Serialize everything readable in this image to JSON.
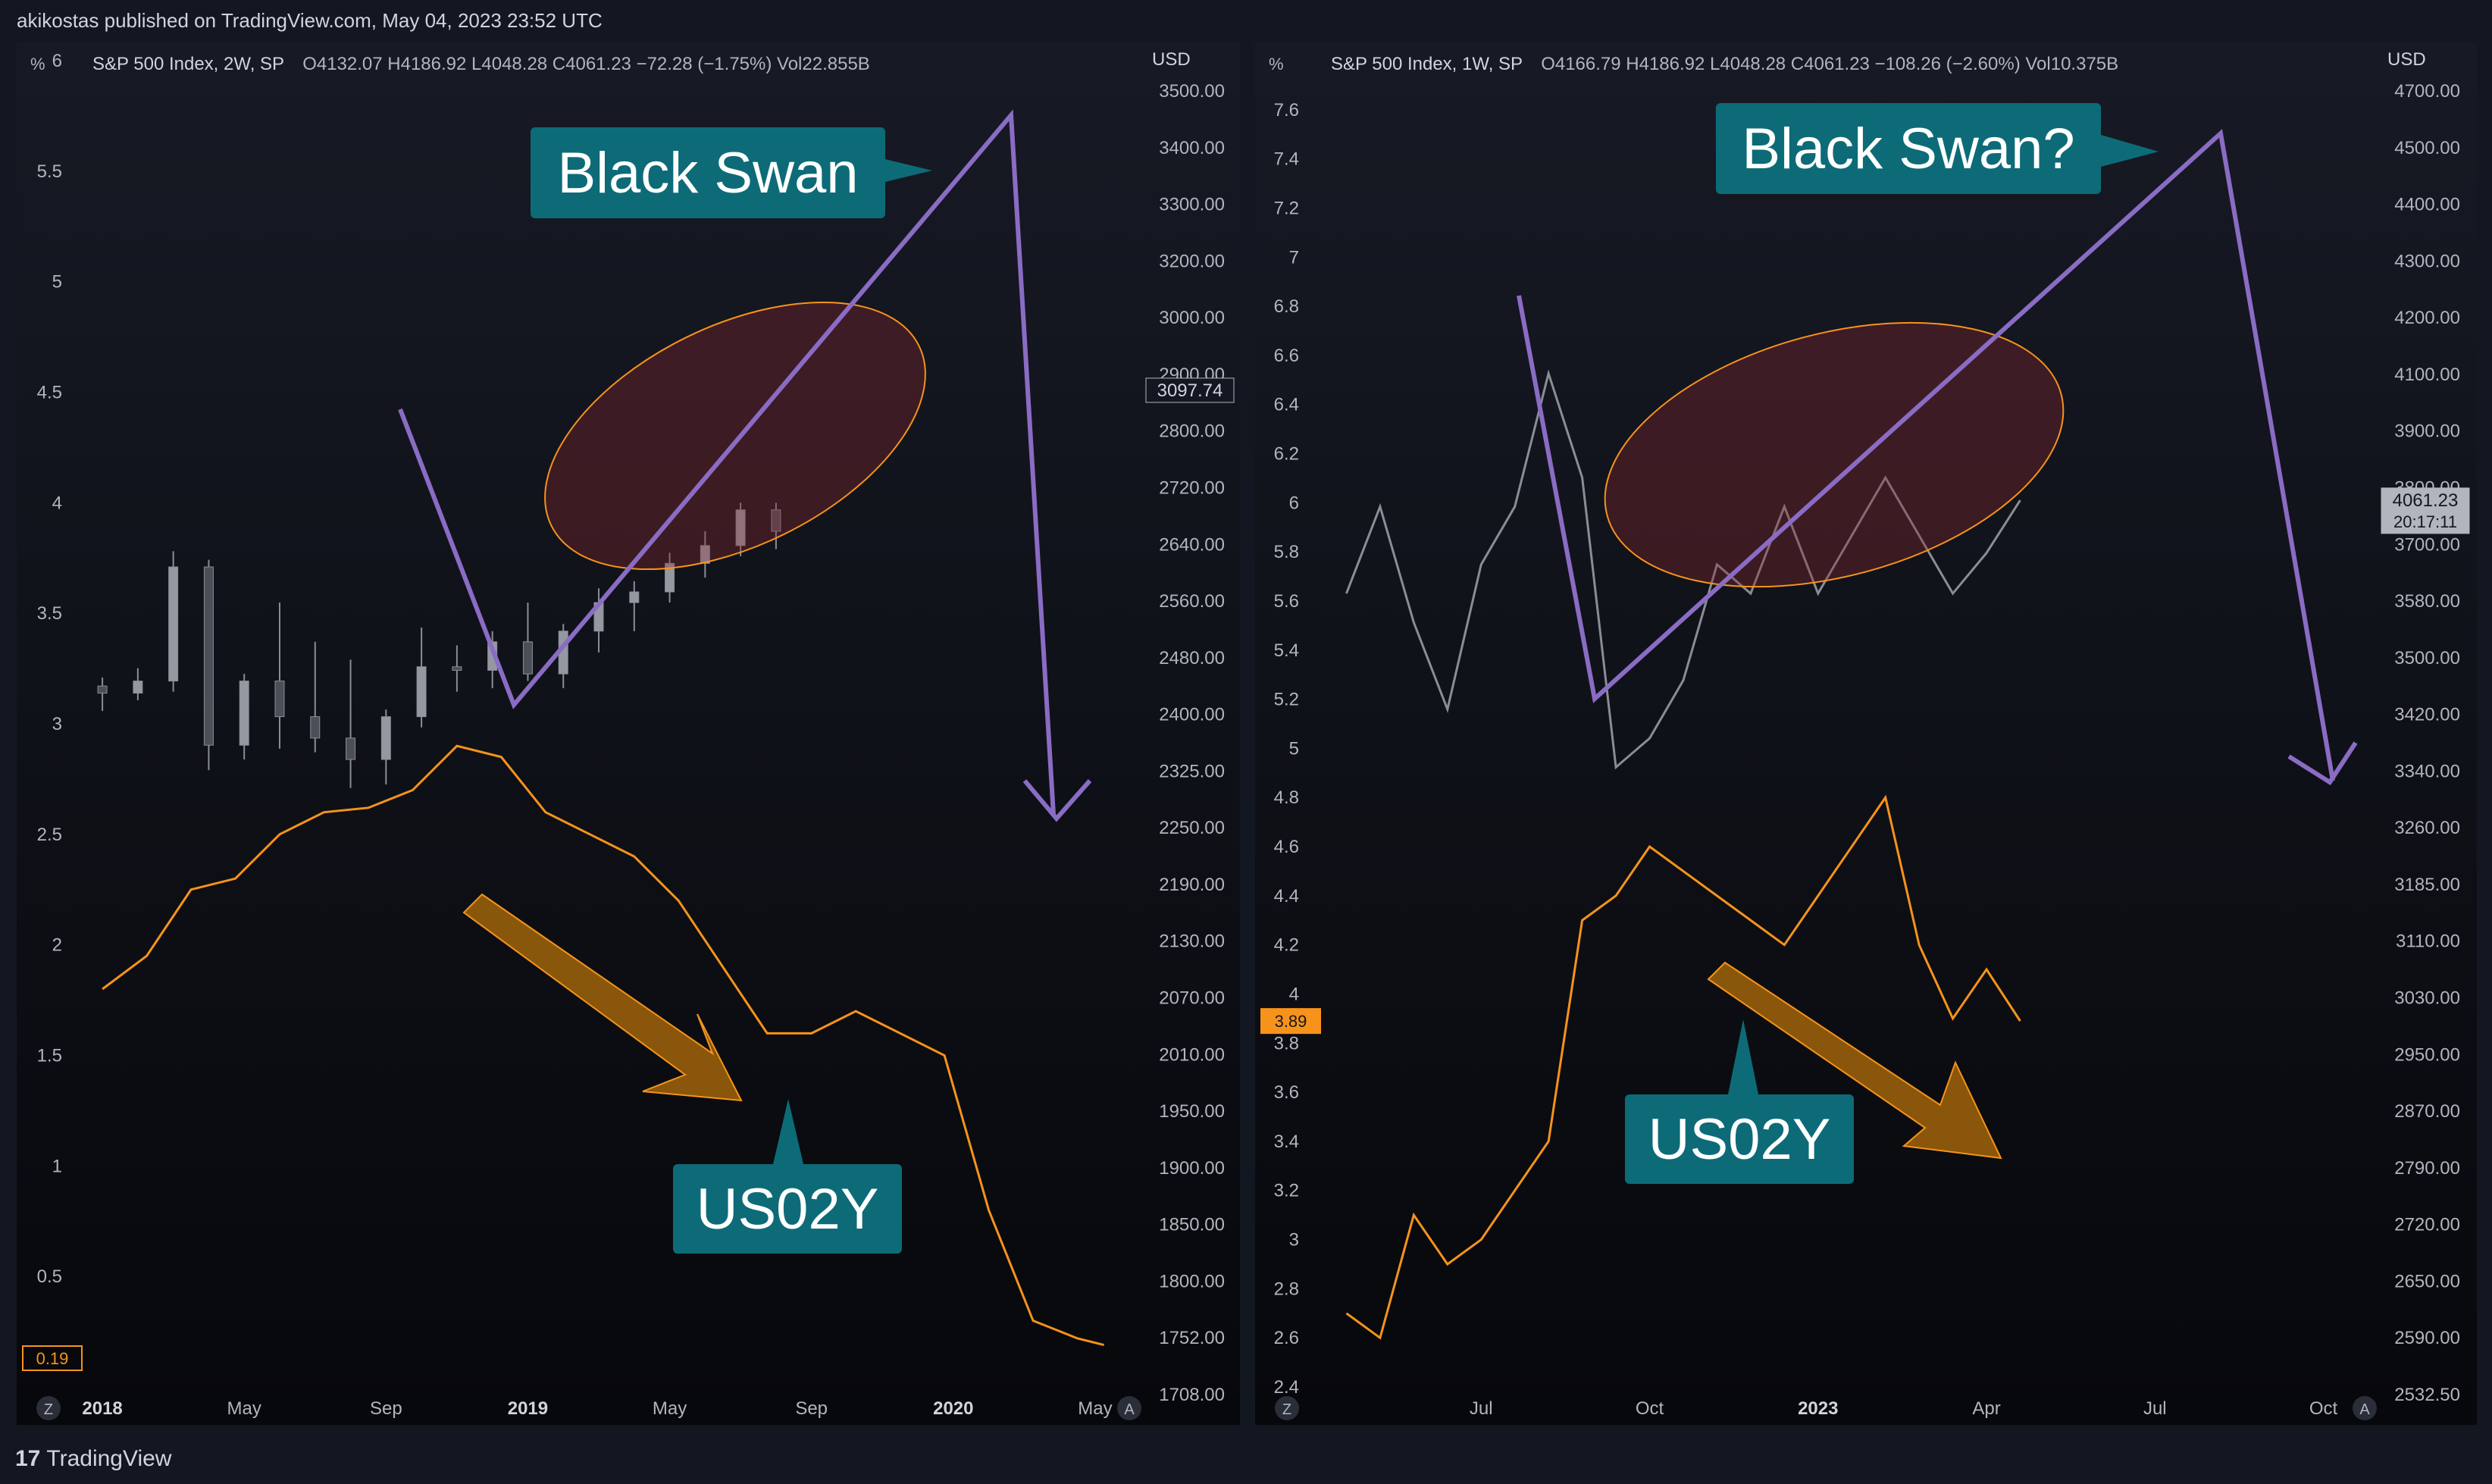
{
  "header": {
    "published": "akikostas published on TradingView.com, May 04, 2023 23:52 UTC"
  },
  "footer": {
    "brand": "TradingView",
    "logo_icon": "tradingview-logo-icon"
  },
  "colors": {
    "background": "#131722",
    "pane_bg": "#0c0d12",
    "candle": "#4c4f58",
    "yield": "#f7931a",
    "arrow_purple": "#8a6cc4",
    "callout": "#0d6b78",
    "ellipse": "#f7931a"
  },
  "chart_data": [
    {
      "type": "candlestick",
      "title": "S&P 500 Index, 2W, SP",
      "ohlc": {
        "o": "O4132.07",
        "h": "H4186.92",
        "l": "L4048.28",
        "c": "C4061.23",
        "chg": "−72.28 (−1.75%)",
        "vol": "Vol22.855B"
      },
      "left_axis_unit": "%",
      "right_axis_unit": "USD",
      "left_ticks": [
        "6",
        "5.5",
        "5",
        "4.5",
        "4",
        "3.5",
        "3",
        "2.5",
        "2",
        "1.5",
        "1",
        "0.5"
      ],
      "left_tick_values": [
        6,
        5.5,
        5,
        4.5,
        4,
        3.5,
        3,
        2.5,
        2,
        1.5,
        1,
        0.5
      ],
      "left_range": [
        0.0,
        6.0
      ],
      "right_ticks": [
        "3500.00",
        "3400.00",
        "3300.00",
        "3200.00",
        "3000.00",
        "2900.00",
        "2800.00",
        "2720.00",
        "2640.00",
        "2560.00",
        "2480.00",
        "2400.00",
        "2325.00",
        "2250.00",
        "2190.00",
        "2130.00",
        "2070.00",
        "2010.00",
        "1950.00",
        "1900.00",
        "1850.00",
        "1800.00",
        "1752.00",
        "1708.00"
      ],
      "right_range": [
        1700,
        3560
      ],
      "price_label": "3097.74",
      "price_value": 3097.74,
      "yield_label": "0.19",
      "x_labels": [
        {
          "t": "2018",
          "bold": true,
          "x": 0.0
        },
        {
          "t": "May",
          "bold": false,
          "x": 0.16
        },
        {
          "t": "Sep",
          "bold": false,
          "x": 0.32
        },
        {
          "t": "2019",
          "bold": true,
          "x": 0.48
        },
        {
          "t": "May",
          "bold": false,
          "x": 0.64
        },
        {
          "t": "Sep",
          "bold": false,
          "x": 0.8
        },
        {
          "t": "2020",
          "bold": true,
          "x": 0.96
        },
        {
          "t": "May",
          "bold": false,
          "x": 1.12
        }
      ],
      "time_range": [
        -0.03,
        1.15
      ],
      "series": [
        {
          "name": "S&P 500",
          "type": "candlestick",
          "candles": [
            [
              0.0,
              2683,
              2695,
              2648,
              2673
            ],
            [
              0.04,
              2673,
              2708,
              2663,
              2690
            ],
            [
              0.08,
              2690,
              2872,
              2675,
              2850
            ],
            [
              0.12,
              2850,
              2860,
              2565,
              2600
            ],
            [
              0.16,
              2600,
              2700,
              2580,
              2690
            ],
            [
              0.2,
              2690,
              2800,
              2595,
              2640
            ],
            [
              0.24,
              2640,
              2745,
              2590,
              2610
            ],
            [
              0.28,
              2610,
              2720,
              2540,
              2580
            ],
            [
              0.32,
              2580,
              2650,
              2545,
              2640
            ],
            [
              0.36,
              2640,
              2765,
              2625,
              2710
            ],
            [
              0.4,
              2710,
              2740,
              2675,
              2705
            ],
            [
              0.44,
              2705,
              2760,
              2680,
              2745
            ],
            [
              0.48,
              2745,
              2800,
              2690,
              2700
            ],
            [
              0.52,
              2700,
              2770,
              2680,
              2760
            ],
            [
              0.56,
              2760,
              2820,
              2730,
              2800
            ],
            [
              0.6,
              2800,
              2830,
              2760,
              2815
            ],
            [
              0.64,
              2815,
              2870,
              2800,
              2855
            ],
            [
              0.68,
              2855,
              2900,
              2835,
              2880
            ],
            [
              0.72,
              2880,
              2940,
              2865,
              2930
            ],
            [
              0.76,
              2930,
              2940,
              2875,
              2900
            ]
          ]
        },
        {
          "name": "US02Y",
          "type": "line",
          "x": [
            0.0,
            0.05,
            0.1,
            0.15,
            0.2,
            0.25,
            0.3,
            0.35,
            0.4,
            0.45,
            0.5,
            0.55,
            0.6,
            0.65,
            0.7,
            0.75,
            0.8,
            0.85,
            0.9,
            0.95,
            1.0,
            1.05,
            1.1,
            1.13
          ],
          "values": [
            1.8,
            1.95,
            2.25,
            2.3,
            2.5,
            2.6,
            2.62,
            2.7,
            2.9,
            2.85,
            2.6,
            2.5,
            2.4,
            2.2,
            1.9,
            1.6,
            1.6,
            1.7,
            1.6,
            1.5,
            0.8,
            0.3,
            0.22,
            0.19
          ]
        }
      ],
      "annotations": [
        {
          "type": "callout",
          "text": "Black Swan"
        },
        {
          "type": "callout",
          "text": "US02Y"
        }
      ]
    },
    {
      "type": "candlestick",
      "title": "S&P 500 Index, 1W, SP",
      "ohlc": {
        "o": "O4166.79",
        "h": "H4186.92",
        "l": "L4048.28",
        "c": "C4061.23",
        "chg": "−108.26 (−2.60%)",
        "vol": "Vol10.375B"
      },
      "left_axis_unit": "%",
      "right_axis_unit": "USD",
      "left_ticks": [
        "7.6",
        "7.4",
        "7.2",
        "7",
        "6.8",
        "6.6",
        "6.4",
        "6.2",
        "6",
        "5.8",
        "5.6",
        "5.4",
        "5.2",
        "5",
        "4.8",
        "4.6",
        "4.4",
        "4.2",
        "4",
        "3.8",
        "3.6",
        "3.4",
        "3.2",
        "3",
        "2.8",
        "2.6",
        "2.4"
      ],
      "left_tick_values": [
        7.6,
        7.4,
        7.2,
        7,
        6.8,
        6.6,
        6.4,
        6.2,
        6,
        5.8,
        5.6,
        5.4,
        5.2,
        5,
        4.8,
        4.6,
        4.4,
        4.2,
        4,
        3.8,
        3.6,
        3.4,
        3.2,
        3,
        2.8,
        2.6,
        2.4
      ],
      "left_range": [
        2.4,
        7.8
      ],
      "right_ticks": [
        "4700.00",
        "4500.00",
        "4400.00",
        "4300.00",
        "4200.00",
        "4100.00",
        "3900.00",
        "3800.00",
        "3700.00",
        "3580.00",
        "3500.00",
        "3420.00",
        "3340.00",
        "3260.00",
        "3185.00",
        "3110.00",
        "3030.00",
        "2950.00",
        "2870.00",
        "2790.00",
        "2720.00",
        "2650.00",
        "2590.00",
        "2532.50"
      ],
      "right_range": [
        2530,
        4820
      ],
      "price_label": "4061.23",
      "price_time": "20:17:11",
      "price_value": 4061.23,
      "yield_label": "3.89",
      "yield_value": 3.89,
      "x_labels": [
        {
          "t": "Jul",
          "bold": false,
          "x": 0.0
        },
        {
          "t": "Oct",
          "bold": false,
          "x": 0.25
        },
        {
          "t": "2023",
          "bold": true,
          "x": 0.5
        },
        {
          "t": "Apr",
          "bold": false,
          "x": 0.75
        },
        {
          "t": "Jul",
          "bold": false,
          "x": 1.0
        },
        {
          "t": "Oct",
          "bold": false,
          "x": 1.25
        }
      ],
      "time_range": [
        -0.25,
        1.3
      ],
      "series": [
        {
          "name": "S&P 500",
          "type": "line",
          "x": [
            -0.2,
            -0.15,
            -0.1,
            -0.05,
            0.0,
            0.05,
            0.1,
            0.15,
            0.2,
            0.25,
            0.3,
            0.35,
            0.4,
            0.45,
            0.5,
            0.55,
            0.6,
            0.65,
            0.7,
            0.75,
            0.8
          ],
          "values": [
            3900,
            4050,
            3850,
            3700,
            3950,
            4050,
            4280,
            4100,
            3600,
            3650,
            3750,
            3950,
            3900,
            4050,
            3900,
            4000,
            4100,
            4000,
            3900,
            3970,
            4061
          ]
        },
        {
          "name": "US02Y",
          "type": "line",
          "x": [
            -0.2,
            -0.15,
            -0.1,
            -0.05,
            0.0,
            0.05,
            0.1,
            0.15,
            0.2,
            0.25,
            0.3,
            0.35,
            0.4,
            0.45,
            0.5,
            0.55,
            0.6,
            0.65,
            0.7,
            0.75,
            0.8
          ],
          "values": [
            2.7,
            2.6,
            3.1,
            2.9,
            3.0,
            3.2,
            3.4,
            4.3,
            4.4,
            4.6,
            4.5,
            4.4,
            4.3,
            4.2,
            4.4,
            4.6,
            4.8,
            4.2,
            3.9,
            4.1,
            3.89
          ]
        }
      ],
      "annotations": [
        {
          "type": "callout",
          "text": "Black Swan?"
        },
        {
          "type": "callout",
          "text": "US02Y"
        }
      ]
    }
  ]
}
